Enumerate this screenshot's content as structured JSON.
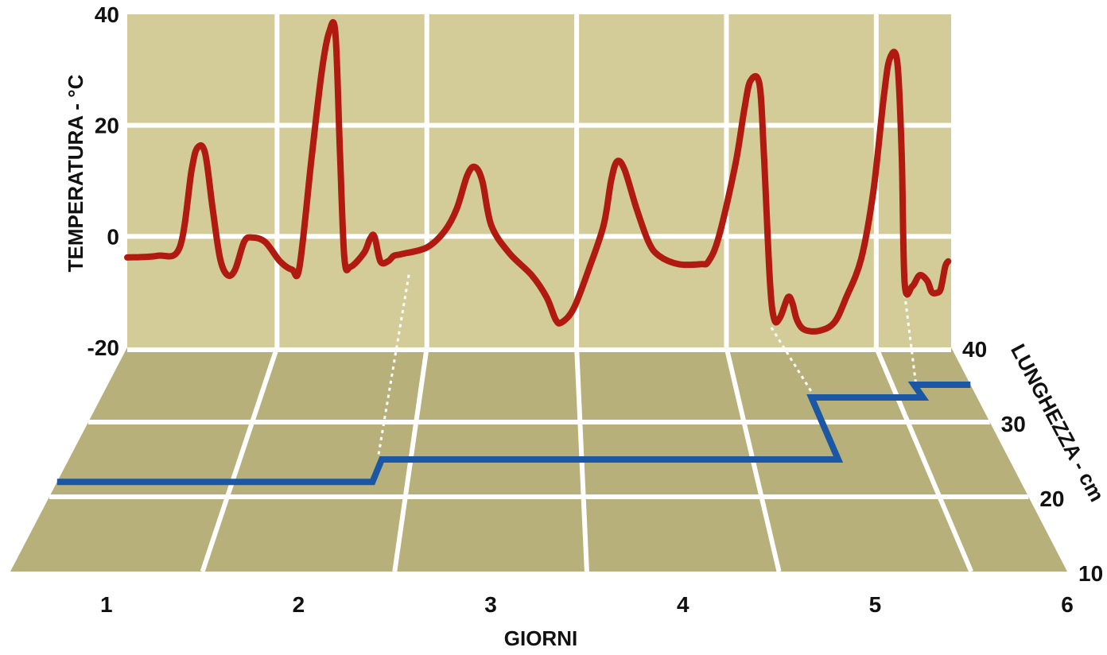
{
  "chart_data": {
    "type": "line",
    "title": "",
    "xlabel": "GIORNI",
    "ylabel": "TEMPERATURA - °C",
    "zlabel": "LUNGHEZZA - cm",
    "x_ticks": [
      "1",
      "2",
      "3",
      "4",
      "5",
      "6"
    ],
    "ylim": [
      -20,
      40
    ],
    "y_ticks": [
      "40",
      "20",
      "0",
      "-20"
    ],
    "zlim": [
      10,
      40
    ],
    "z_ticks": [
      "40",
      "30",
      "20",
      "10"
    ],
    "grid": true,
    "colors": {
      "wall": "#d3cc99",
      "floor": "#b8b07a",
      "grid": "#ffffff",
      "temperature": "#b01a10",
      "length": "#1c57a5"
    },
    "series": [
      {
        "kind": "temperature",
        "points": [
          [
            0.5,
            -3.8
          ],
          [
            0.7,
            -3.5
          ],
          [
            0.85,
            -2
          ],
          [
            0.93,
            12
          ],
          [
            0.97,
            16
          ],
          [
            1.02,
            15
          ],
          [
            1.07,
            5
          ],
          [
            1.12,
            -4
          ],
          [
            1.17,
            -7
          ],
          [
            1.22,
            -6
          ],
          [
            1.28,
            -1
          ],
          [
            1.33,
            -0.2
          ],
          [
            1.42,
            -1
          ],
          [
            1.52,
            -4.5
          ],
          [
            1.6,
            -6
          ],
          [
            1.65,
            -5.5
          ],
          [
            1.73,
            14
          ],
          [
            1.8,
            30
          ],
          [
            1.85,
            37
          ],
          [
            1.89,
            36.5
          ],
          [
            1.92,
            15
          ],
          [
            1.95,
            -4
          ],
          [
            1.99,
            -5.5
          ],
          [
            2.08,
            -3
          ],
          [
            2.12,
            -0.5
          ],
          [
            2.15,
            0
          ],
          [
            2.19,
            -4.5
          ],
          [
            2.24,
            -4.5
          ],
          [
            2.28,
            -3.5
          ],
          [
            2.33,
            -3.2
          ],
          [
            2.5,
            -2
          ],
          [
            2.62,
            1
          ],
          [
            2.7,
            5
          ],
          [
            2.77,
            11
          ],
          [
            2.82,
            12.5
          ],
          [
            2.87,
            10
          ],
          [
            2.93,
            2
          ],
          [
            3.05,
            -3
          ],
          [
            3.2,
            -7
          ],
          [
            3.3,
            -11
          ],
          [
            3.36,
            -15
          ],
          [
            3.4,
            -15.5
          ],
          [
            3.48,
            -13
          ],
          [
            3.58,
            -6
          ],
          [
            3.68,
            2
          ],
          [
            3.73,
            10
          ],
          [
            3.77,
            13.5
          ],
          [
            3.82,
            12
          ],
          [
            3.9,
            5
          ],
          [
            3.98,
            -1
          ],
          [
            4.05,
            -3.5
          ],
          [
            4.18,
            -5
          ],
          [
            4.33,
            -5
          ],
          [
            4.38,
            -4.5
          ],
          [
            4.45,
            0
          ],
          [
            4.56,
            13
          ],
          [
            4.62,
            23
          ],
          [
            4.66,
            28
          ],
          [
            4.72,
            27.5
          ],
          [
            4.75,
            15
          ],
          [
            4.79,
            -8
          ],
          [
            4.82,
            -15
          ],
          [
            4.86,
            -14.5
          ],
          [
            4.91,
            -11
          ],
          [
            4.94,
            -12
          ],
          [
            4.97,
            -15
          ],
          [
            5.02,
            -16.8
          ],
          [
            5.12,
            -17
          ],
          [
            5.22,
            -15.5
          ],
          [
            5.3,
            -11
          ],
          [
            5.4,
            -4
          ],
          [
            5.48,
            8
          ],
          [
            5.55,
            25
          ],
          [
            5.59,
            32
          ],
          [
            5.64,
            31.5
          ],
          [
            5.67,
            15
          ],
          [
            5.69,
            -8.5
          ],
          [
            5.74,
            -9
          ],
          [
            5.79,
            -7
          ],
          [
            5.84,
            -8
          ],
          [
            5.87,
            -10
          ],
          [
            5.9,
            -10.2
          ],
          [
            5.93,
            -9.5
          ],
          [
            5.96,
            -5.5
          ],
          [
            5.98,
            -4.5
          ]
        ]
      },
      {
        "kind": "length",
        "points": [
          [
            0.5,
            22
          ],
          [
            2.3,
            22
          ],
          [
            2.33,
            25
          ],
          [
            5.0,
            25
          ],
          [
            4.96,
            33.3
          ],
          [
            5.66,
            33.3
          ],
          [
            5.64,
            35
          ],
          [
            6.0,
            35
          ]
        ]
      }
    ]
  }
}
